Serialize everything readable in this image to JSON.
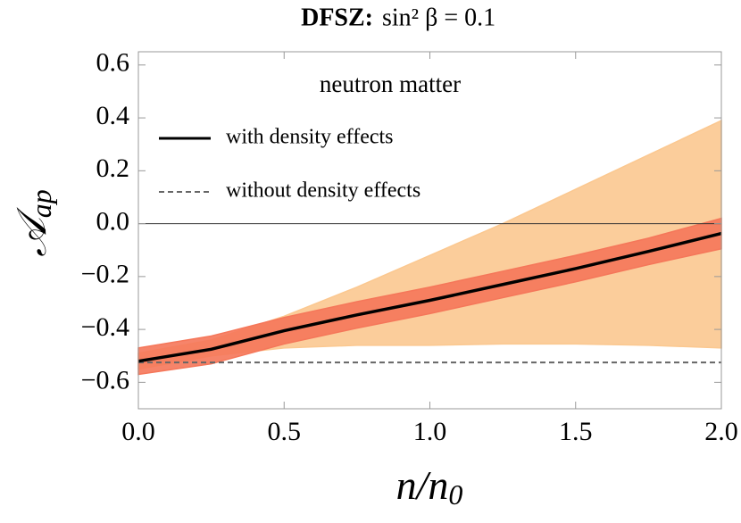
{
  "chart_data": {
    "type": "line",
    "title": "DFSZ:",
    "subtitle": "sin² β = 0.1",
    "xlabel": {
      "main": "n/n",
      "sub": "0"
    },
    "ylabel": {
      "main": "𝒜",
      "sub": "ap"
    },
    "annotation": "neutron matter",
    "x": [
      0,
      0.25,
      0.5,
      0.75,
      1.0,
      1.25,
      1.5,
      1.75,
      2.0
    ],
    "series": [
      {
        "name": "with density effects",
        "color": "#000000",
        "dash": false,
        "values": [
          -0.52,
          -0.475,
          -0.405,
          -0.345,
          -0.29,
          -0.23,
          -0.17,
          -0.105,
          -0.037
        ]
      },
      {
        "name": "without density effects",
        "color": "#666666",
        "dash": true,
        "values": [
          -0.525,
          -0.525,
          -0.525,
          -0.525,
          -0.525,
          -0.525,
          -0.525,
          -0.525,
          -0.525
        ]
      }
    ],
    "bands": [
      {
        "color": "#fbc890",
        "lower": [
          -0.55,
          -0.5,
          -0.47,
          -0.46,
          -0.46,
          -0.455,
          -0.455,
          -0.46,
          -0.47
        ],
        "upper": [
          -0.49,
          -0.44,
          -0.35,
          -0.24,
          -0.12,
          0.0,
          0.13,
          0.26,
          0.39
        ]
      },
      {
        "color": "#f5775a",
        "lower": [
          -0.57,
          -0.53,
          -0.455,
          -0.395,
          -0.34,
          -0.28,
          -0.22,
          -0.155,
          -0.095
        ],
        "upper": [
          -0.47,
          -0.425,
          -0.355,
          -0.295,
          -0.24,
          -0.18,
          -0.12,
          -0.055,
          0.02
        ]
      }
    ],
    "xlim": [
      0,
      2.0
    ],
    "ylim": [
      -0.7,
      0.65
    ],
    "xticks": [
      {
        "value": 0,
        "label": "0.0"
      },
      0.5,
      {
        "value": 1.0,
        "label": "1.0"
      },
      1.5,
      {
        "value": 2.0,
        "label": "2.0"
      }
    ],
    "yticks": [
      {
        "value": -0.6,
        "label": "−0.6"
      },
      {
        "value": -0.4,
        "label": "−0.4"
      },
      {
        "value": -0.2,
        "label": "−0.2"
      },
      {
        "value": 0,
        "label": "0.0"
      },
      0.2,
      0.4,
      0.6
    ],
    "zero_line": true
  }
}
